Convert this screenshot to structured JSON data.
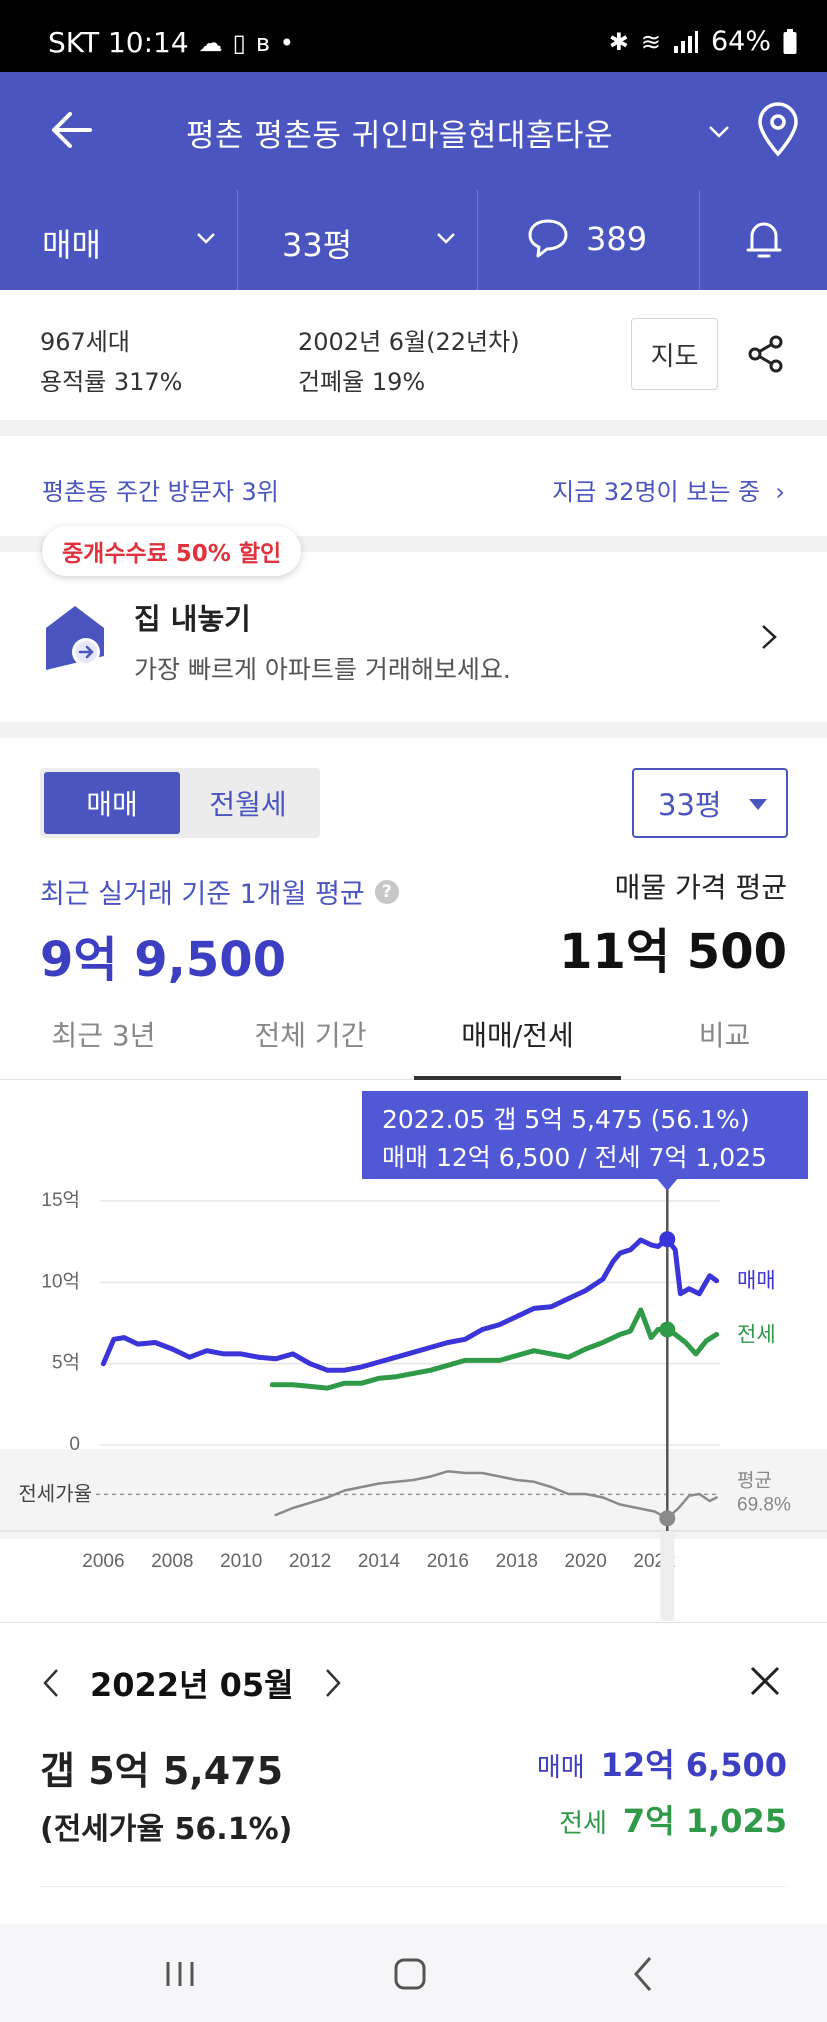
{
  "status_bar": {
    "carrier_time": "SKT 10:14",
    "battery": "64%",
    "icons": [
      "cloud-icon",
      "device-icon",
      "b-app-icon",
      "dot-icon",
      "bluetooth-icon",
      "wifi-icon",
      "signal-icon",
      "battery-icon"
    ]
  },
  "header": {
    "title": "평촌 평촌동 귀인마을현대홈타운",
    "icons": [
      "back-arrow-icon",
      "chevron-down-icon",
      "location-pin-icon"
    ]
  },
  "filters": {
    "trade_type": "매매",
    "size": "33평",
    "comments": "389",
    "icons": [
      "chevron-down-icon",
      "comment-icon",
      "bell-icon"
    ]
  },
  "info": {
    "households": "967세대",
    "far": "용적률 317%",
    "built": "2002년 6월(22년차)",
    "bcr": "건폐율 19%",
    "map_button": "지도"
  },
  "visitors": {
    "rank": "평촌동 주간 방문자 3위",
    "viewing_now": "지금 32명이 보는 중"
  },
  "sell": {
    "promo": "중개수수료 50% 할인",
    "title": "집 내놓기",
    "subtitle": "가장 빠르게 아파트를 거래해보세요."
  },
  "price_panel": {
    "toggle_active": "매매",
    "toggle_inactive": "전월세",
    "size_select": "33평",
    "avg_label": "최근 실거래 기준 1개월 평균",
    "avg_value": "9억 9,500",
    "listing_label": "매물 가격 평균",
    "listing_value": "11억 500"
  },
  "tabs": [
    "최근 3년",
    "전체 기간",
    "매매/전세",
    "비교"
  ],
  "active_tab_index": 2,
  "tooltip": {
    "line1": "2022.05  갭 5억 5,475 (56.1%)",
    "line2": "매매 12억 6,500 / 전세 7억 1,025"
  },
  "chart_data": {
    "type": "line",
    "x_ticks": [
      "2006",
      "2008",
      "2010",
      "2012",
      "2014",
      "2016",
      "2018",
      "2020",
      "2022"
    ],
    "y_ticks": [
      "15억",
      "10억",
      "5억",
      "0"
    ],
    "ylim": [
      0,
      15
    ],
    "xlim": [
      2005.9,
      2023.9
    ],
    "ratio_label": "전세가율",
    "avg_label": "평균",
    "avg_ratio": "69.8%",
    "selected_x": 2022.37,
    "colors": {
      "sale": "#3b34d8",
      "jeonse": "#2f9a47",
      "ratio": "#8a8a8a"
    },
    "series": [
      {
        "name": "매매",
        "x": [
          2006.0,
          2006.3,
          2006.6,
          2007.0,
          2007.5,
          2008.0,
          2008.5,
          2009.0,
          2009.5,
          2010.0,
          2010.5,
          2011.0,
          2011.5,
          2012.0,
          2012.5,
          2013.0,
          2013.5,
          2014.0,
          2014.5,
          2015.0,
          2015.5,
          2016.0,
          2016.5,
          2017.0,
          2017.5,
          2018.0,
          2018.5,
          2019.0,
          2019.5,
          2020.0,
          2020.5,
          2020.8,
          2021.0,
          2021.3,
          2021.6,
          2021.9,
          2022.1,
          2022.37,
          2022.6,
          2022.75,
          2023.0,
          2023.3,
          2023.6,
          2023.8
        ],
        "values": [
          5.0,
          6.5,
          6.6,
          6.2,
          6.3,
          5.9,
          5.4,
          5.8,
          5.6,
          5.6,
          5.4,
          5.3,
          5.6,
          5.0,
          4.6,
          4.6,
          4.8,
          5.1,
          5.4,
          5.7,
          6.0,
          6.3,
          6.5,
          7.1,
          7.4,
          7.9,
          8.4,
          8.5,
          9.0,
          9.5,
          10.2,
          11.3,
          11.8,
          12.0,
          12.6,
          12.3,
          12.2,
          12.65,
          12.0,
          9.3,
          9.6,
          9.3,
          10.4,
          10.1
        ]
      },
      {
        "name": "전세",
        "x": [
          2010.9,
          2011.5,
          2012.0,
          2012.5,
          2013.0,
          2013.5,
          2014.0,
          2014.5,
          2015.0,
          2015.5,
          2016.0,
          2016.5,
          2017.0,
          2017.5,
          2018.0,
          2018.5,
          2019.0,
          2019.5,
          2020.0,
          2020.5,
          2021.0,
          2021.3,
          2021.6,
          2021.9,
          2022.1,
          2022.37,
          2022.6,
          2022.9,
          2023.2,
          2023.5,
          2023.8
        ],
        "values": [
          3.7,
          3.7,
          3.6,
          3.5,
          3.8,
          3.8,
          4.1,
          4.2,
          4.4,
          4.6,
          4.9,
          5.2,
          5.2,
          5.2,
          5.5,
          5.8,
          5.6,
          5.4,
          5.9,
          6.3,
          6.8,
          7.0,
          8.3,
          6.6,
          7.1,
          7.1,
          6.8,
          6.3,
          5.6,
          6.4,
          6.8
        ]
      },
      {
        "name": "전세가율",
        "x": [
          2011.0,
          2011.5,
          2012.0,
          2012.5,
          2013.0,
          2013.5,
          2014.0,
          2014.5,
          2015.0,
          2015.5,
          2016.0,
          2016.5,
          2017.0,
          2017.5,
          2018.0,
          2018.5,
          2019.0,
          2019.5,
          2020.0,
          2020.5,
          2021.0,
          2021.5,
          2022.0,
          2022.37,
          2022.7,
          2023.0,
          2023.3,
          2023.6,
          2023.8
        ],
        "values": [
          58,
          62,
          65,
          68,
          72,
          74,
          76,
          77,
          78,
          80,
          83,
          82,
          82,
          80,
          78,
          77,
          74,
          70,
          70,
          68,
          64,
          62,
          60,
          56.1,
          62,
          69,
          70,
          66,
          68
        ]
      }
    ]
  },
  "detail": {
    "date": "2022년 05월",
    "gap": "갭 5억 5,475",
    "ratio": "(전세가율 56.1%)",
    "sale_label": "매매",
    "sale_value": "12억 6,500",
    "jeonse_label": "전세",
    "jeonse_value": "7억 1,025"
  },
  "colors": {
    "brand": "#4a55c0",
    "sale": "#3d3fc2",
    "jeonse": "#2f9a47",
    "promo": "#e0313c"
  }
}
